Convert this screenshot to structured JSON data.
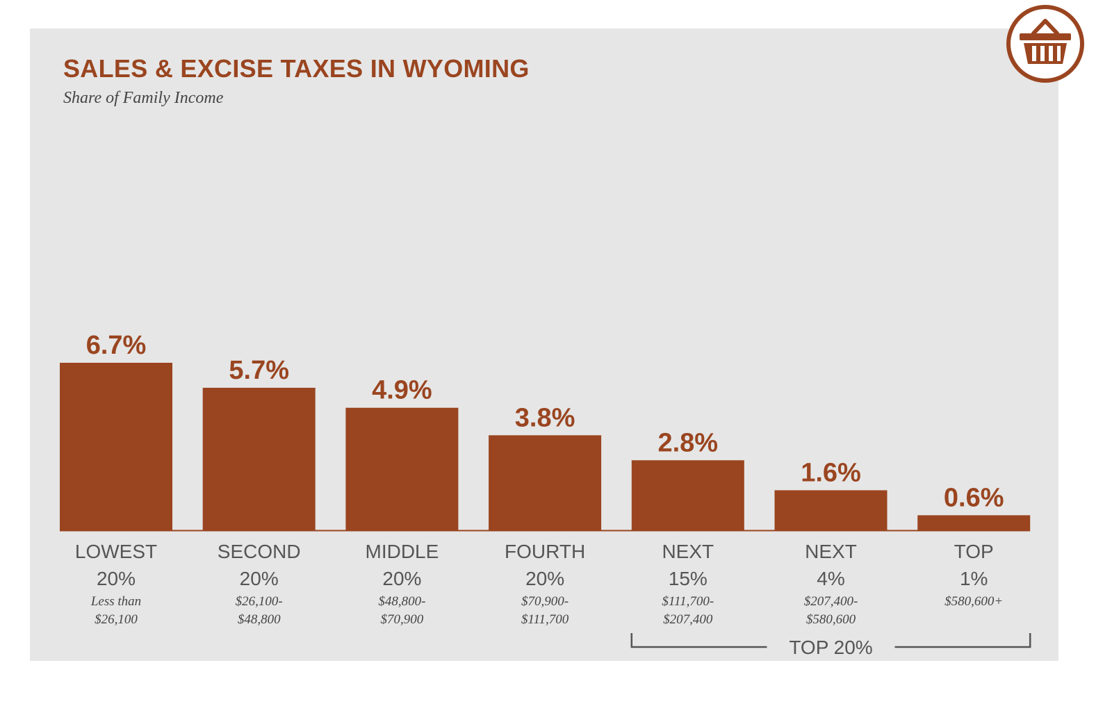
{
  "title": "SALES & EXCISE TAXES IN WYOMING",
  "subtitle": "Share of Family Income",
  "icon": "shopping-basket-icon",
  "colors": {
    "accent": "#9a4520",
    "panel": "#e6e6e6",
    "label": "#555555",
    "range": "#444444"
  },
  "chart_data": {
    "type": "bar",
    "title": "SALES & EXCISE TAXES IN WYOMING",
    "subtitle": "Share of Family Income",
    "categories": [
      {
        "name": "LOWEST",
        "pct": "20%",
        "range": [
          "Less than",
          "$26,100"
        ]
      },
      {
        "name": "SECOND",
        "pct": "20%",
        "range": [
          "$26,100-",
          "$48,800"
        ]
      },
      {
        "name": "MIDDLE",
        "pct": "20%",
        "range": [
          "$48,800-",
          "$70,900"
        ]
      },
      {
        "name": "FOURTH",
        "pct": "20%",
        "range": [
          "$70,900-",
          "$111,700"
        ]
      },
      {
        "name": "NEXT",
        "pct": "15%",
        "range": [
          "$111,700-",
          "$207,400"
        ]
      },
      {
        "name": "NEXT",
        "pct": "4%",
        "range": [
          "$207,400-",
          "$580,600"
        ]
      },
      {
        "name": "TOP",
        "pct": "1%",
        "range": [
          "$580,600+"
        ]
      }
    ],
    "values": [
      6.7,
      5.7,
      4.9,
      3.8,
      2.8,
      1.6,
      0.6
    ],
    "value_labels": [
      "6.7%",
      "5.7%",
      "4.9%",
      "3.8%",
      "2.8%",
      "1.6%",
      "0.6%"
    ],
    "group": {
      "label": "TOP 20%",
      "from_index": 4,
      "to_index": 6
    },
    "ylim": [
      0,
      6.7
    ],
    "grid": false,
    "legend": "none"
  }
}
